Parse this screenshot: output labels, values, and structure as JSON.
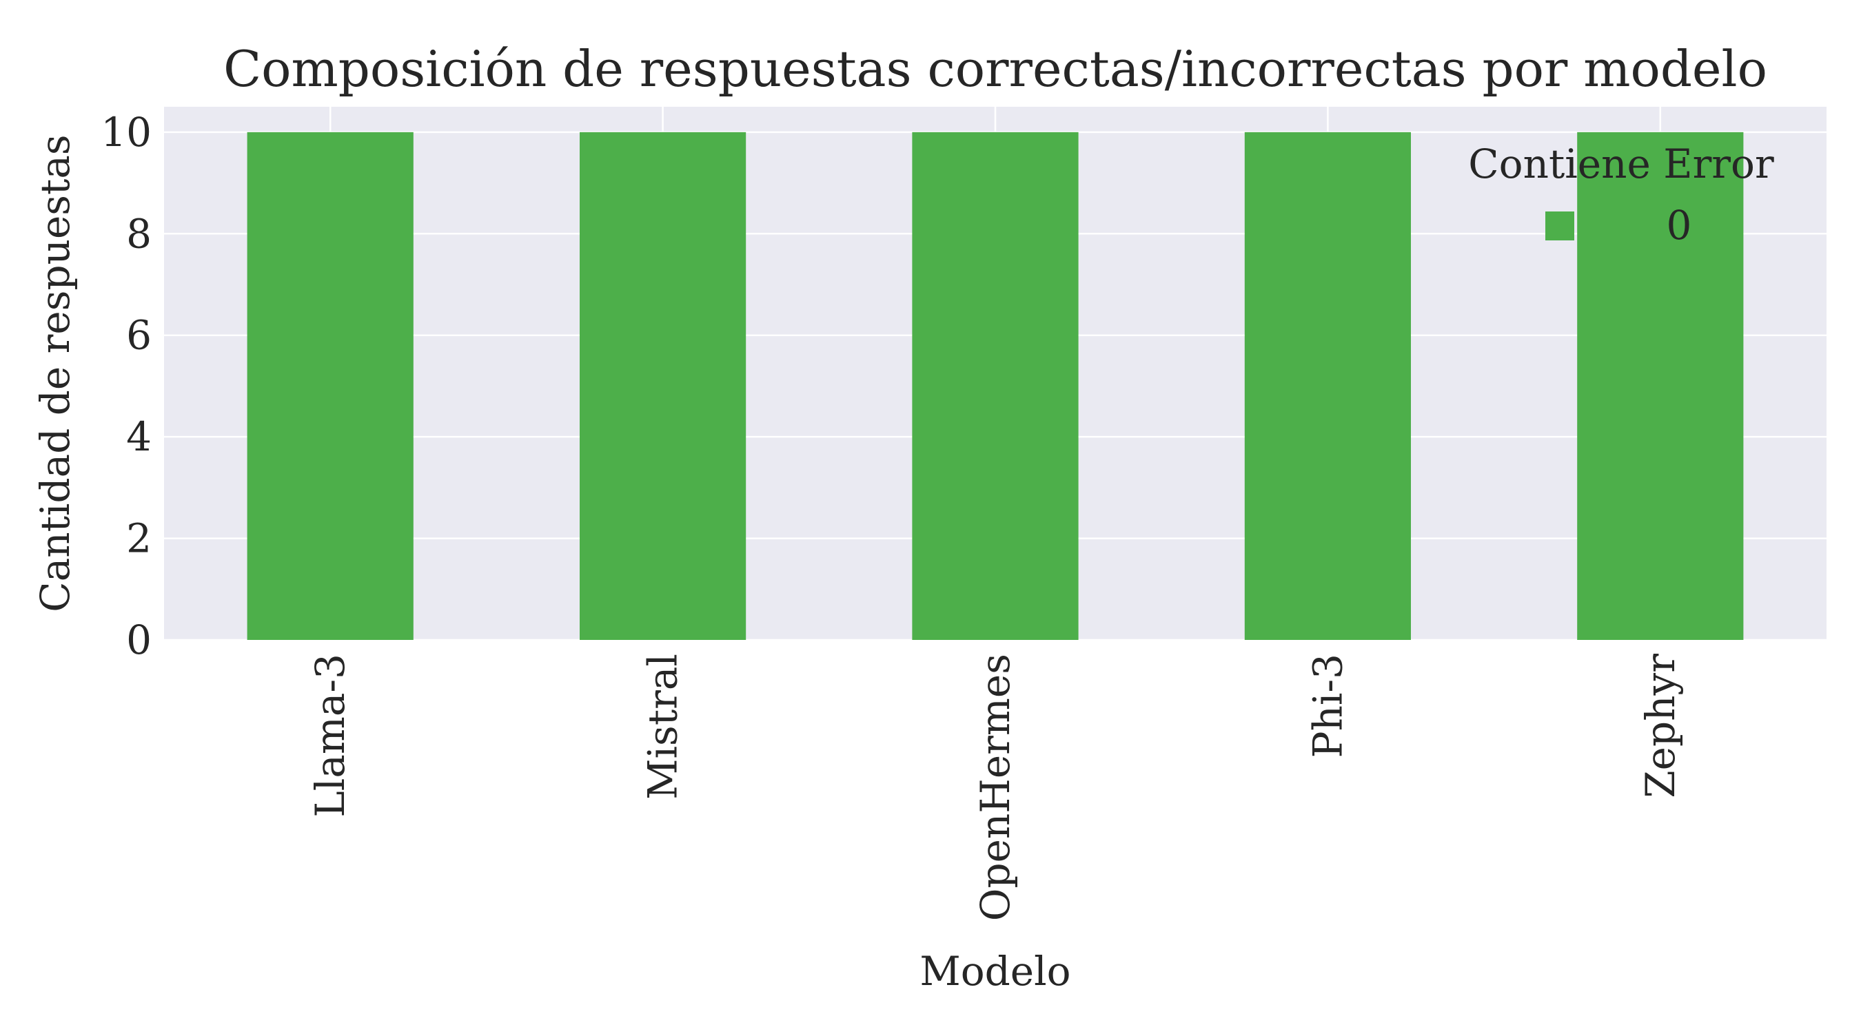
{
  "chart_data": {
    "type": "bar",
    "stacked": true,
    "title": "Composición de respuestas correctas/incorrectas por modelo",
    "xlabel": "Modelo",
    "ylabel": "Cantidad de respuestas",
    "categories": [
      "Llama-3",
      "Mistral",
      "OpenHermes",
      "Phi-3",
      "Zephyr"
    ],
    "series": [
      {
        "name": "0",
        "values": [
          10,
          10,
          10,
          10,
          10
        ],
        "color": "#4daf4a"
      }
    ],
    "ylim": [
      0,
      10.5
    ],
    "yticks": [
      0,
      2,
      4,
      6,
      8,
      10
    ],
    "grid": true,
    "legend": {
      "title": "Contiene Error",
      "position": "top-right"
    },
    "colors": {
      "plot_background": "#eaeaf2",
      "grid": "#ffffff",
      "text": "#262626"
    }
  }
}
